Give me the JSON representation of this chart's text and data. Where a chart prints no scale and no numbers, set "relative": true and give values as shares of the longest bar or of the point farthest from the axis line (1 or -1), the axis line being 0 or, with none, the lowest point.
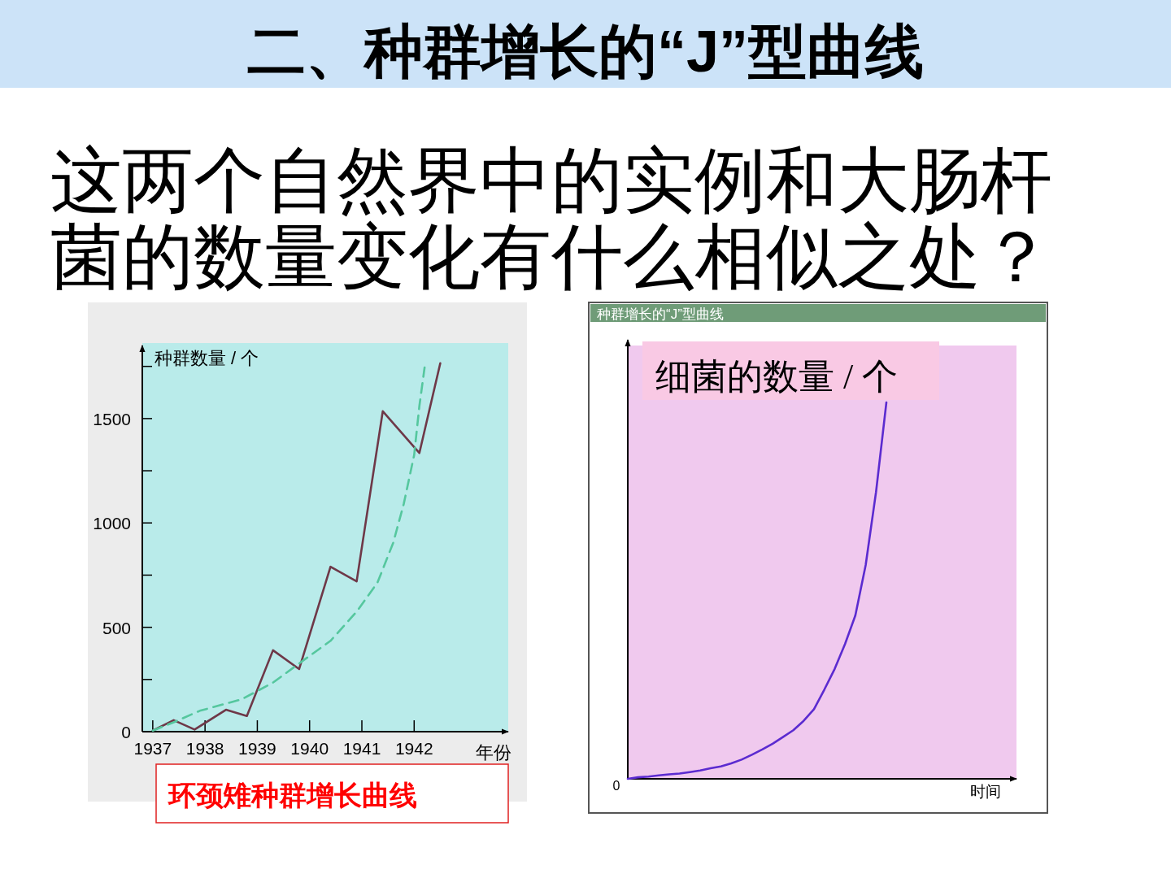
{
  "chart_data": [
    {
      "type": "other",
      "title": "二、种群增长的“J”型曲线",
      "subtitle": "这两个自然界中的实例和大肠杆菌的数量变化有什么相似之处？"
    },
    {
      "type": "line",
      "xlabel": "年份",
      "ylabel": "种群数量 / 个",
      "xlim": [
        1936.8,
        1943.8
      ],
      "xticks": [
        1937,
        1938,
        1939,
        1940,
        1941,
        1942
      ],
      "ylim": [
        0,
        1850
      ],
      "yticks": [
        0,
        {
          "value": 250,
          "label": null
        },
        500,
        {
          "value": 750,
          "label": null
        },
        1000,
        {
          "value": 1250,
          "label": null
        },
        1500,
        {
          "value": 1750,
          "label": null
        }
      ],
      "series": [
        {
          "color": "#6e3848",
          "line_style": "solid",
          "x": [
            1937.0,
            1937.4,
            1937.8,
            1938.4,
            1938.8,
            1939.3,
            1939.8,
            1940.4,
            1940.9,
            1941.4,
            1942.1,
            1942.5
          ],
          "values": [
            5,
            55,
            10,
            105,
            75,
            390,
            300,
            790,
            720,
            1535,
            1335,
            1765
          ]
        },
        {
          "color": "#55c79e",
          "line_style": "dashed",
          "x": [
            1937.0,
            1937.4,
            1937.9,
            1938.7,
            1939.3,
            1939.9,
            1940.4,
            1940.9,
            1941.3,
            1941.6,
            1941.8,
            1942.0,
            1942.1,
            1942.2
          ],
          "values": [
            5,
            45,
            100,
            155,
            235,
            345,
            435,
            575,
            715,
            905,
            1090,
            1325,
            1560,
            1745
          ]
        }
      ],
      "annotations": [
        "环颈雉种群增长曲线"
      ]
    },
    {
      "type": "line",
      "title": "种群增长的“J”型曲线",
      "xlabel": "时间",
      "ylabel": "细菌的数量 / 个",
      "relative": true,
      "categories": [
        null,
        null,
        null,
        null,
        null,
        null,
        null,
        null,
        null,
        null,
        null,
        null,
        null,
        null,
        null,
        null,
        null,
        null,
        null,
        null,
        null,
        null,
        null,
        null,
        null,
        null
      ],
      "values": [
        0,
        0.004,
        0.006,
        0.009,
        0.012,
        0.014,
        0.018,
        0.022,
        0.028,
        0.033,
        0.041,
        0.051,
        0.064,
        0.078,
        0.093,
        0.111,
        0.129,
        0.154,
        0.185,
        0.237,
        0.292,
        0.358,
        0.434,
        0.568,
        0.762,
        1
      ],
      "color": "#5b2bd0",
      "annotations": [
        "0"
      ]
    }
  ]
}
